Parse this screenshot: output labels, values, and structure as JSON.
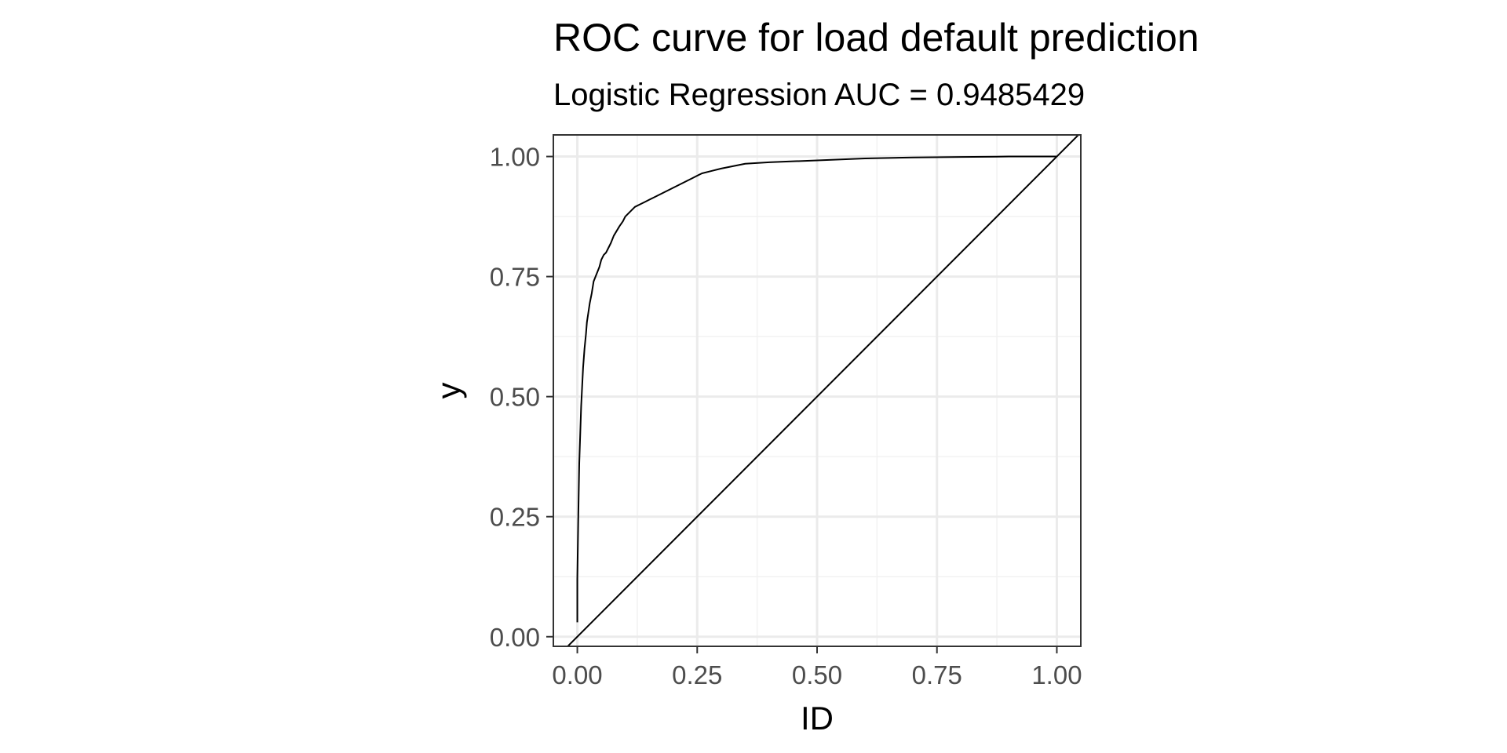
{
  "chart_data": {
    "type": "line",
    "title": "ROC curve for load default prediction",
    "subtitle": "Logistic Regression AUC = 0.9485429",
    "xlabel": "ID",
    "ylabel": "y",
    "xlim": [
      -0.05,
      1.05
    ],
    "ylim": [
      -0.02,
      1.045
    ],
    "x_ticks": [
      0.0,
      0.25,
      0.5,
      0.75,
      1.0
    ],
    "x_tick_labels": [
      "0.00",
      "0.25",
      "0.50",
      "0.75",
      "1.00"
    ],
    "y_ticks": [
      0.0,
      0.25,
      0.5,
      0.75,
      1.0
    ],
    "y_tick_labels": [
      "0.00",
      "0.25",
      "0.50",
      "0.75",
      "1.00"
    ],
    "grid": true,
    "series": [
      {
        "values_x": [
          0.0,
          0.0,
          0.002,
          0.004,
          0.006,
          0.008,
          0.01,
          0.012,
          0.015,
          0.018,
          0.02,
          0.023,
          0.026,
          0.03,
          0.034,
          0.038,
          0.042,
          0.046,
          0.05,
          0.055,
          0.06,
          0.065,
          0.07,
          0.076,
          0.082,
          0.088,
          0.095,
          0.1,
          0.11,
          0.12,
          0.13,
          0.14,
          0.15,
          0.16,
          0.18,
          0.2,
          0.22,
          0.24,
          0.26,
          0.28,
          0.3,
          0.35,
          0.4,
          0.45,
          0.5,
          0.55,
          0.6,
          0.7,
          0.8,
          0.9,
          1.0
        ],
        "values_y": [
          0.03,
          0.12,
          0.25,
          0.36,
          0.42,
          0.48,
          0.52,
          0.56,
          0.6,
          0.63,
          0.655,
          0.675,
          0.695,
          0.715,
          0.74,
          0.75,
          0.76,
          0.77,
          0.785,
          0.795,
          0.8,
          0.81,
          0.82,
          0.835,
          0.845,
          0.855,
          0.865,
          0.875,
          0.885,
          0.895,
          0.9,
          0.905,
          0.91,
          0.915,
          0.925,
          0.935,
          0.945,
          0.955,
          0.965,
          0.97,
          0.975,
          0.985,
          0.988,
          0.99,
          0.992,
          0.994,
          0.996,
          0.998,
          0.999,
          1.0,
          1.0
        ],
        "color": "#000000"
      },
      {
        "values_x": [
          -0.02,
          1.05
        ],
        "values_y": [
          -0.02,
          1.05
        ],
        "color": "#000000"
      }
    ],
    "colors": {
      "panel_border": "#333333",
      "grid_major": "#ebebeb",
      "grid_minor": "#f2f2f2",
      "tick_label": "#4d4d4d"
    }
  }
}
